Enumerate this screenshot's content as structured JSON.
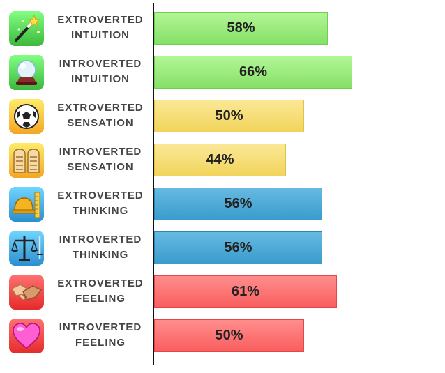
{
  "chart_data": {
    "type": "bar",
    "orientation": "horizontal",
    "categories": [
      [
        "EXTROVERTED",
        "INTUITION"
      ],
      [
        "INTROVERTED",
        "INTUITION"
      ],
      [
        "EXTROVERTED",
        "SENSATION"
      ],
      [
        "INTROVERTED",
        "SENSATION"
      ],
      [
        "EXTROVERTED",
        "THINKING"
      ],
      [
        "INTROVERTED",
        "THINKING"
      ],
      [
        "EXTROVERTED",
        "FEELING"
      ],
      [
        "INTROVERTED",
        "FEELING"
      ]
    ],
    "values": [
      58,
      66,
      50,
      44,
      56,
      56,
      61,
      50
    ],
    "value_labels": [
      "58%",
      "66%",
      "50%",
      "44%",
      "56%",
      "56%",
      "61%",
      "50%"
    ],
    "bar_colors": [
      "#9cee7c",
      "#9cee7c",
      "#f6de78",
      "#f6de78",
      "#4faad7",
      "#4faad7",
      "#fc7676",
      "#fc7676"
    ],
    "icons": [
      "magic-wand-icon",
      "crystal-ball-icon",
      "soccer-ball-icon",
      "stone-tablets-icon",
      "hard-hat-ruler-icon",
      "scales-sword-icon",
      "handshake-icon",
      "heart-icon"
    ],
    "icon_colors": [
      "#3cb93c",
      "#3cb93c",
      "#f5a623",
      "#f5a623",
      "#2b8fd0",
      "#2b8fd0",
      "#e52b2b",
      "#e52b2b"
    ],
    "xlim": [
      0,
      100
    ],
    "grid": false,
    "legend": "none",
    "title": "",
    "xlabel": "",
    "ylabel": ""
  }
}
